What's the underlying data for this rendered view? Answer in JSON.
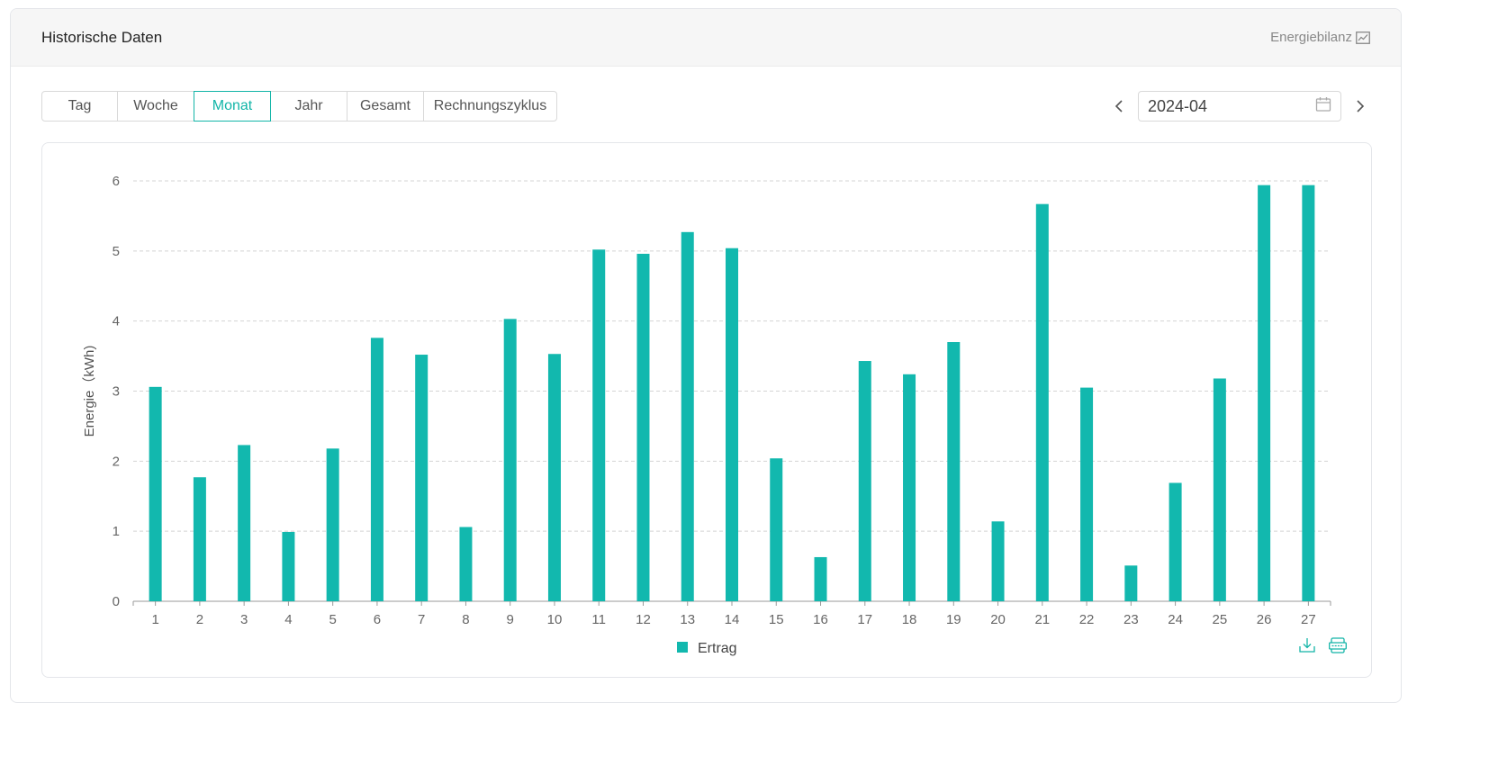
{
  "header": {
    "title": "Historische Daten",
    "link_label": "Energiebilanz",
    "link_icon": "line-chart-icon"
  },
  "period_tabs": [
    {
      "label": "Tag",
      "active": false
    },
    {
      "label": "Woche",
      "active": false
    },
    {
      "label": "Monat",
      "active": true
    },
    {
      "label": "Jahr",
      "active": false
    },
    {
      "label": "Gesamt",
      "active": false
    },
    {
      "label": "Rechnungszyklus",
      "active": false
    }
  ],
  "date_picker": {
    "value": "2024-04",
    "prev_icon": "chevron-left-icon",
    "next_icon": "chevron-right-icon",
    "calendar_icon": "calendar-icon"
  },
  "colors": {
    "accent": "#13b5a8",
    "bar": "#12b8ae",
    "grid": "#d4d4d4",
    "axis": "#999999",
    "tick_text": "#666666"
  },
  "chart_actions": [
    {
      "name": "download-icon"
    },
    {
      "name": "csv-export-icon"
    }
  ],
  "chart_data": {
    "type": "bar",
    "title": "",
    "xlabel": "",
    "ylabel": "Energie（kWh)",
    "ylim": [
      0,
      6
    ],
    "yticks": [
      0,
      1,
      2,
      3,
      4,
      5,
      6
    ],
    "grid": true,
    "legend_position": "bottom-center",
    "categories": [
      "1",
      "2",
      "3",
      "4",
      "5",
      "6",
      "7",
      "8",
      "9",
      "10",
      "11",
      "12",
      "13",
      "14",
      "15",
      "16",
      "17",
      "18",
      "19",
      "20",
      "21",
      "22",
      "23",
      "24",
      "25",
      "26",
      "27"
    ],
    "series": [
      {
        "name": "Ertrag",
        "color": "#12b8ae",
        "values": [
          3.06,
          1.77,
          2.23,
          0.99,
          2.18,
          3.76,
          3.52,
          1.06,
          4.03,
          3.53,
          5.02,
          4.96,
          5.27,
          5.04,
          2.04,
          0.63,
          3.43,
          3.24,
          3.7,
          1.14,
          5.67,
          3.05,
          0.51,
          1.69,
          3.18,
          5.94,
          5.94
        ]
      }
    ]
  }
}
